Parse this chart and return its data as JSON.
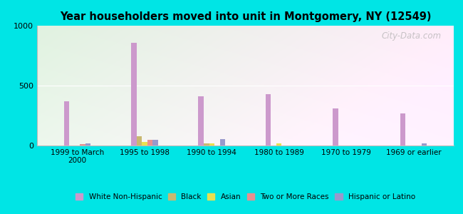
{
  "title": "Year householders moved into unit in Montgomery, NY (12549)",
  "categories": [
    "1999 to March\n2000",
    "1995 to 1998",
    "1990 to 1994",
    "1980 to 1989",
    "1970 to 1979",
    "1969 or earlier"
  ],
  "series": {
    "White Non-Hispanic": [
      370,
      860,
      410,
      430,
      310,
      270
    ],
    "Black": [
      0,
      80,
      15,
      0,
      0,
      0
    ],
    "Asian": [
      0,
      30,
      15,
      15,
      0,
      0
    ],
    "Two or More Races": [
      10,
      45,
      0,
      0,
      0,
      0
    ],
    "Hispanic or Latino": [
      15,
      50,
      55,
      0,
      0,
      15
    ]
  },
  "colors": {
    "White Non-Hispanic": "#cc99cc",
    "Black": "#c8b870",
    "Asian": "#e8e050",
    "Two or More Races": "#e89090",
    "Hispanic or Latino": "#9999cc"
  },
  "ylim": [
    0,
    1000
  ],
  "yticks": [
    0,
    500,
    1000
  ],
  "background_outer": "#00e5e5",
  "bar_width": 0.08,
  "watermark": "City-Data.com",
  "legend_labels": [
    "White Non-Hispanic",
    "Black",
    "Asian",
    "Two or More Races",
    "Hispanic or Latino"
  ]
}
